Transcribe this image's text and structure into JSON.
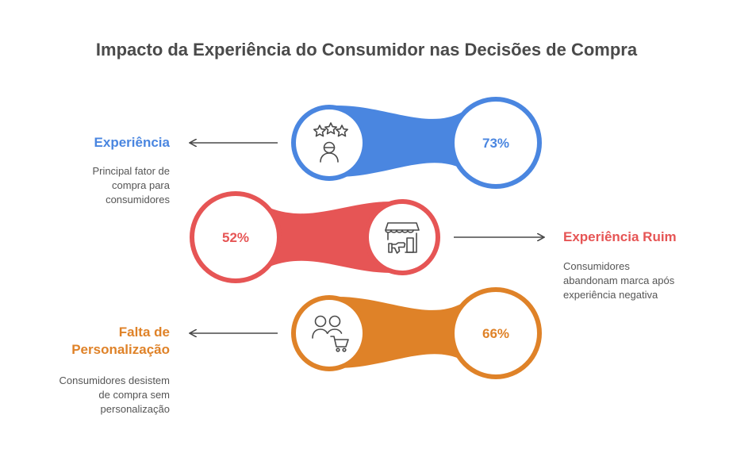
{
  "title": "Impacto da Experiência do Consumidor nas Decisões de Compra",
  "colors": {
    "blue": "#4a86e0",
    "red": "#e65555",
    "orange": "#df8228",
    "text": "#4a4a4a"
  },
  "items": [
    {
      "heading": "Experiência",
      "description": [
        "Principal fator de",
        "compra para",
        "consumidores"
      ],
      "value": "73%",
      "icon": "stars-rating-person-icon",
      "color": "#4a86e0"
    },
    {
      "heading": "Experiência Ruim",
      "description": [
        "Consumidores",
        "abandonam marca após",
        "experiência negativa"
      ],
      "value": "52%",
      "icon": "store-thumbs-down-icon",
      "color": "#e65555"
    },
    {
      "heading_lines": [
        "Falta de",
        "Personalização"
      ],
      "description": [
        "Consumidores desistem",
        "de compra sem",
        "personalização"
      ],
      "value": "66%",
      "icon": "users-shopping-cart-icon",
      "color": "#df8228"
    }
  ]
}
